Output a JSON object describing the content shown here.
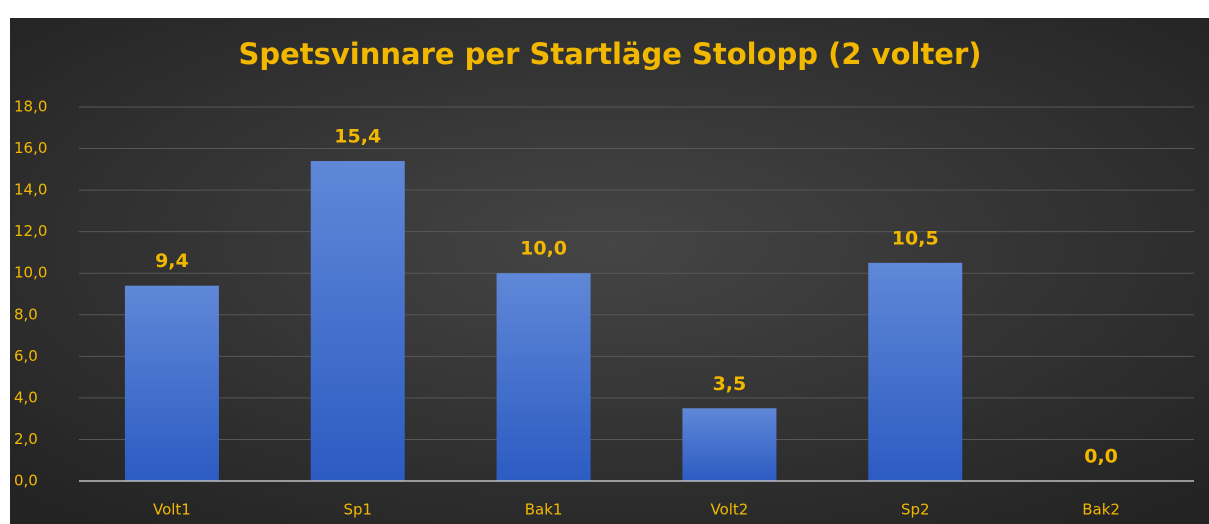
{
  "chart_data": {
    "type": "bar",
    "title": "Spetsvinnare per Startläge Stolopp (2 volter)",
    "categories": [
      "Volt1",
      "Sp1",
      "Bak1",
      "Volt2",
      "Sp2",
      "Bak2"
    ],
    "values": [
      9.4,
      15.4,
      10.0,
      3.5,
      10.5,
      0.0
    ],
    "value_labels": [
      "9,4",
      "15,4",
      "10,0",
      "3,5",
      "10,5",
      "0,0"
    ],
    "color": "#4472c4",
    "ylim": [
      0,
      18
    ],
    "yticks": [
      {
        "value": 0,
        "label": "0,0"
      },
      {
        "value": 2,
        "label": "2,0"
      },
      {
        "value": 4,
        "label": "4,0"
      },
      {
        "value": 6,
        "label": "6,0"
      },
      {
        "value": 8,
        "label": "8,0"
      },
      {
        "value": 10,
        "label": "10,0"
      },
      {
        "value": 12,
        "label": "12,0"
      },
      {
        "value": 14,
        "label": "14,0"
      },
      {
        "value": 16,
        "label": "16,0"
      },
      {
        "value": 18,
        "label": "18,0"
      }
    ],
    "grid": true
  }
}
